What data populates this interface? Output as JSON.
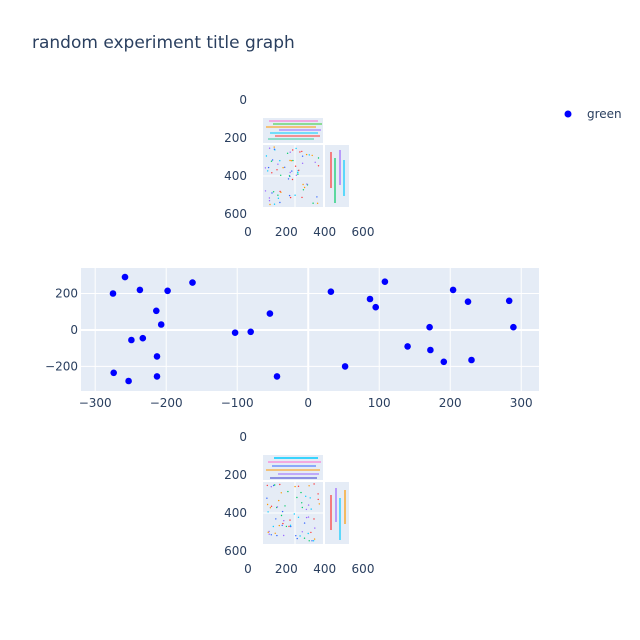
{
  "title": "random experiment title graph",
  "chart_data": [
    {
      "type": "image",
      "panel": "top",
      "xlim": [
        0,
        600
      ],
      "ylim": [
        600,
        0
      ],
      "xticks": [
        "0",
        "200",
        "400",
        "600"
      ],
      "yticks": [
        "0",
        "200",
        "400",
        "600"
      ]
    },
    {
      "type": "scatter",
      "panel": "middle",
      "xlim": [
        -320,
        325
      ],
      "ylim": [
        -335,
        340
      ],
      "xticks": [
        "−300",
        "−200",
        "−100",
        "0",
        "100",
        "200",
        "300"
      ],
      "yticks": [
        "200",
        "0",
        "−200"
      ],
      "grid": true,
      "legend_position": "top-right",
      "series": [
        {
          "name": "green",
          "color": "#0000ff",
          "x": [
            -275,
            -258,
            -237,
            -214,
            -207,
            -198,
            -163,
            -249,
            -233,
            -213,
            -274,
            -253,
            -213,
            -103,
            -81,
            -54,
            -44,
            32,
            52,
            87,
            95,
            108,
            140,
            171,
            172,
            191,
            204,
            225,
            230,
            283,
            289
          ],
          "y": [
            200,
            290,
            220,
            105,
            30,
            215,
            260,
            -55,
            -45,
            -145,
            -235,
            -280,
            -255,
            -15,
            -10,
            90,
            -255,
            210,
            -200,
            170,
            125,
            265,
            -90,
            15,
            -110,
            -175,
            220,
            155,
            -165,
            160,
            15
          ]
        }
      ]
    },
    {
      "type": "image",
      "panel": "bottom",
      "xlim": [
        0,
        600
      ],
      "ylim": [
        600,
        0
      ],
      "xticks": [
        "0",
        "200",
        "400",
        "600"
      ],
      "yticks": [
        "0",
        "200",
        "400",
        "600"
      ]
    }
  ]
}
